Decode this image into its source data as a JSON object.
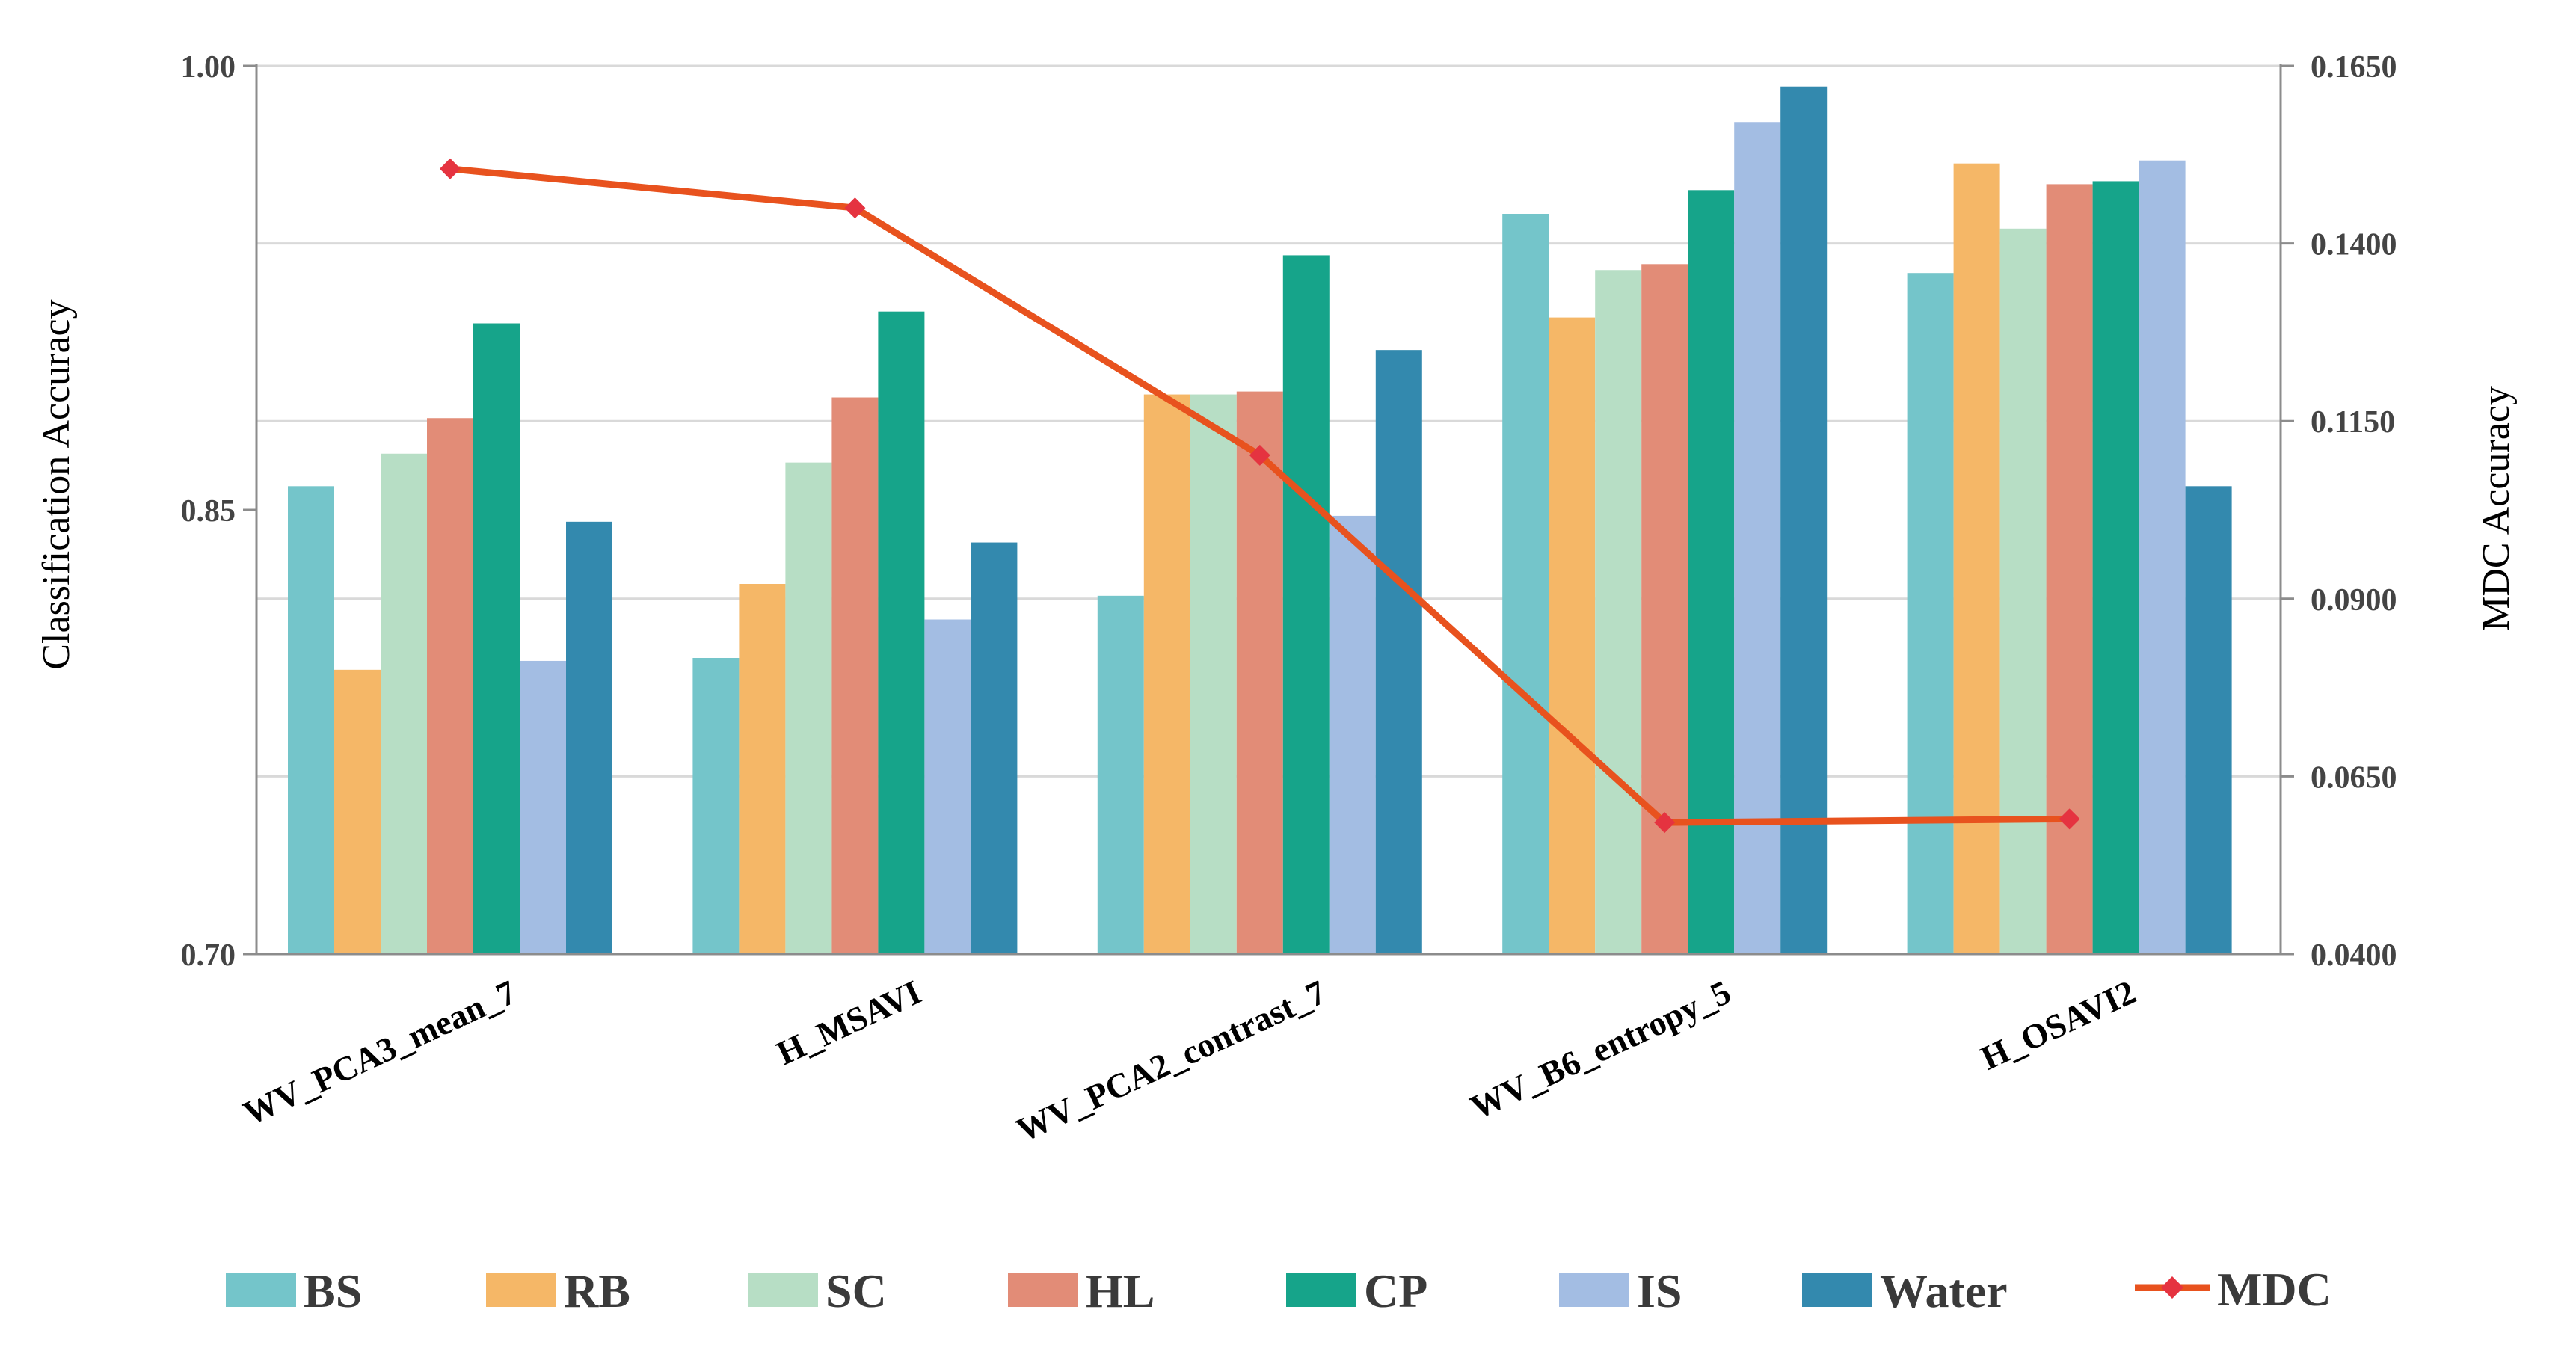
{
  "chart_data": {
    "type": "bar+line",
    "title": "",
    "categories": [
      "WV_PCA3_mean_7",
      "H_MSAVI",
      "WV_PCA2_contrast_7",
      "WV_B6_entropy_5",
      "H_OSAVI2"
    ],
    "series": [
      {
        "name": "BS",
        "color": "#74C5CA",
        "values": [
          0.858,
          0.8,
          0.821,
          0.95,
          0.93
        ]
      },
      {
        "name": "RB",
        "color": "#F5B767",
        "values": [
          0.796,
          0.825,
          0.889,
          0.915,
          0.967
        ]
      },
      {
        "name": "SC",
        "color": "#B7DEC5",
        "values": [
          0.869,
          0.866,
          0.889,
          0.931,
          0.945
        ]
      },
      {
        "name": "HL",
        "color": "#E28C77",
        "values": [
          0.881,
          0.888,
          0.89,
          0.933,
          0.96
        ]
      },
      {
        "name": "CP",
        "color": "#16A48A",
        "values": [
          0.913,
          0.917,
          0.936,
          0.958,
          0.961
        ]
      },
      {
        "name": "IS",
        "color": "#A3BDE3",
        "values": [
          0.799,
          0.813,
          0.848,
          0.981,
          0.968
        ]
      },
      {
        "name": "Water",
        "color": "#3389AE",
        "values": [
          0.846,
          0.839,
          0.904,
          0.993,
          0.858
        ]
      }
    ],
    "line_series": {
      "name": "MDC",
      "color": "#E8521E",
      "marker_color": "#E53340",
      "axis": "right",
      "values": [
        0.1505,
        0.145,
        0.1102,
        0.0585,
        0.059
      ]
    },
    "left_axis": {
      "label": "Classification Accuracy",
      "ylim": [
        0.7,
        1.0
      ],
      "ticks": [
        "0.70",
        "0.85",
        "1.00"
      ]
    },
    "right_axis": {
      "label": "MDC Accuracy",
      "ylim": [
        0.04,
        0.165
      ],
      "ticks": [
        "0.0400",
        "0.0650",
        "0.0900",
        "0.1150",
        "0.1400",
        "0.1650"
      ]
    },
    "legend": {
      "position": "bottom",
      "items": [
        "BS",
        "RB",
        "SC",
        "HL",
        "CP",
        "IS",
        "Water",
        "MDC"
      ]
    },
    "grid": "horizontal"
  }
}
